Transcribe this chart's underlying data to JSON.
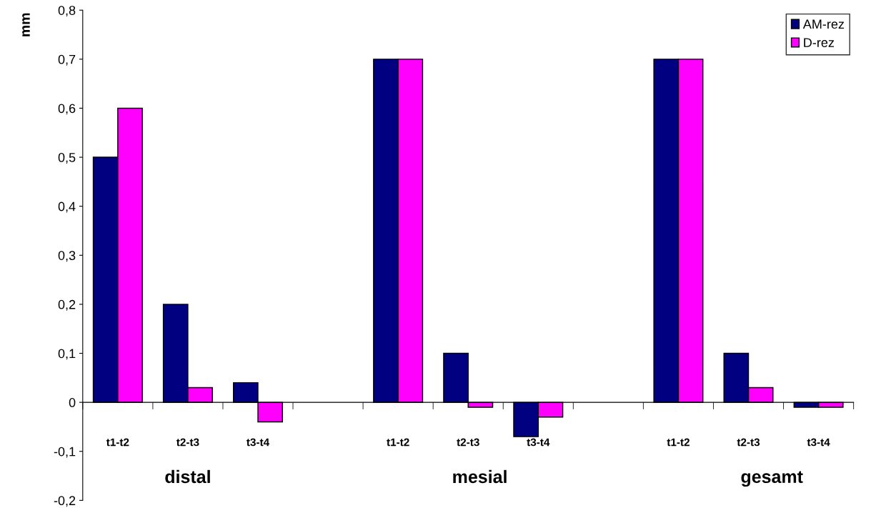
{
  "chart_data": {
    "type": "bar",
    "ylabel": "mm",
    "categories": [
      "t1-t2",
      "t2-t3",
      "t3-t4",
      null,
      "t1-t2",
      "t2-t3",
      "t3-t4",
      null,
      "t1-t2",
      "t2-t3",
      "t3-t4"
    ],
    "series": [
      {
        "name": "AM-rez",
        "color": "#000080",
        "values": [
          0.5,
          0.2,
          0.04,
          null,
          0.7,
          0.1,
          -0.07,
          null,
          0.7,
          0.1,
          -0.01
        ]
      },
      {
        "name": "D-rez",
        "color": "#ff00ff",
        "values": [
          0.6,
          0.03,
          -0.04,
          null,
          0.7,
          -0.01,
          -0.03,
          null,
          0.7,
          0.03,
          -0.01
        ]
      }
    ],
    "annotations": [
      "distal",
      "mesial",
      "gesamt"
    ],
    "ylim": [
      -0.2,
      0.8
    ],
    "yticks": [
      {
        "value": -0.2,
        "label": "-0,2"
      },
      {
        "value": -0.1,
        "label": "-0,1"
      },
      {
        "value": 0,
        "label": "0"
      },
      {
        "value": 0.1,
        "label": "0,1"
      },
      {
        "value": 0.2,
        "label": "0,2"
      },
      {
        "value": 0.3,
        "label": "0,3"
      },
      {
        "value": 0.4,
        "label": "0,4"
      },
      {
        "value": 0.5,
        "label": "0,5"
      },
      {
        "value": 0.6,
        "label": "0,6"
      },
      {
        "value": 0.7,
        "label": "0,7"
      },
      {
        "value": 0.8,
        "label": "0,8"
      }
    ],
    "legend": "top right"
  }
}
